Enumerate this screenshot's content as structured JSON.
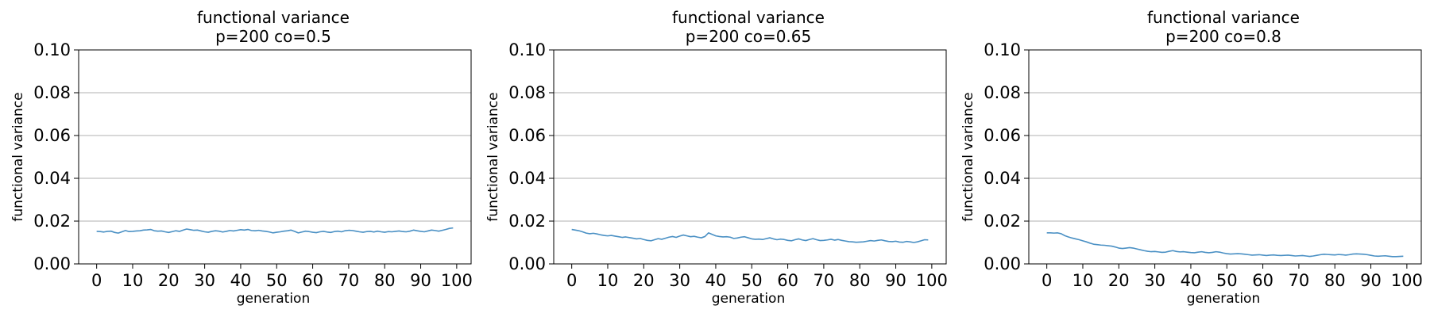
{
  "colors": {
    "line": "#4a90c4",
    "grid": "#b0b0b0",
    "axes": "#000000"
  },
  "chart_data": [
    {
      "type": "line",
      "title": "functional variance",
      "subtitle": "p=200 co=0.5",
      "xlabel": "generation",
      "ylabel": "functional variance",
      "xlim": [
        -5,
        104
      ],
      "ylim": [
        0.0,
        0.1
      ],
      "xticks": [
        "0",
        "10",
        "20",
        "30",
        "40",
        "50",
        "60",
        "70",
        "80",
        "90",
        "100"
      ],
      "yticks": [
        "0.00",
        "0.02",
        "0.04",
        "0.06",
        "0.08",
        "0.10"
      ],
      "grid": "y",
      "series": [
        {
          "values": [
            0.0152,
            0.0151,
            0.0149,
            0.0152,
            0.0153,
            0.0147,
            0.0144,
            0.015,
            0.0156,
            0.0151,
            0.0152,
            0.0154,
            0.0155,
            0.0158,
            0.0159,
            0.0161,
            0.0155,
            0.0153,
            0.0154,
            0.015,
            0.0147,
            0.0151,
            0.0155,
            0.0152,
            0.0158,
            0.0163,
            0.016,
            0.0157,
            0.0158,
            0.0154,
            0.015,
            0.0148,
            0.0152,
            0.0155,
            0.0153,
            0.0149,
            0.0152,
            0.0156,
            0.0154,
            0.0157,
            0.016,
            0.0158,
            0.0161,
            0.0156,
            0.0155,
            0.0157,
            0.0154,
            0.0152,
            0.0149,
            0.0145,
            0.0148,
            0.015,
            0.0153,
            0.0155,
            0.0158,
            0.0152,
            0.0145,
            0.0149,
            0.0153,
            0.0151,
            0.0148,
            0.0146,
            0.015,
            0.0152,
            0.0149,
            0.0147,
            0.0151,
            0.0153,
            0.015,
            0.0155,
            0.0157,
            0.0156,
            0.0153,
            0.015,
            0.0148,
            0.0151,
            0.0152,
            0.0149,
            0.0153,
            0.015,
            0.0148,
            0.0151,
            0.015,
            0.0152,
            0.0154,
            0.0151,
            0.015,
            0.0153,
            0.0158,
            0.0155,
            0.0152,
            0.015,
            0.0154,
            0.0158,
            0.0156,
            0.0153,
            0.0157,
            0.0161,
            0.0166,
            0.0168
          ]
        }
      ]
    },
    {
      "type": "line",
      "title": "functional variance",
      "subtitle": "p=200 co=0.65",
      "xlabel": "generation",
      "ylabel": "functional variance",
      "xlim": [
        -5,
        104
      ],
      "ylim": [
        0.0,
        0.1
      ],
      "xticks": [
        "0",
        "10",
        "20",
        "30",
        "40",
        "50",
        "60",
        "70",
        "80",
        "90",
        "100"
      ],
      "yticks": [
        "0.00",
        "0.02",
        "0.04",
        "0.06",
        "0.08",
        "0.10"
      ],
      "grid": "y",
      "series": [
        {
          "values": [
            0.0161,
            0.0158,
            0.0155,
            0.015,
            0.0144,
            0.0141,
            0.0143,
            0.014,
            0.0136,
            0.0133,
            0.0131,
            0.0133,
            0.013,
            0.0127,
            0.0124,
            0.0126,
            0.0123,
            0.012,
            0.0117,
            0.0119,
            0.0114,
            0.011,
            0.0108,
            0.0113,
            0.0118,
            0.0115,
            0.012,
            0.0125,
            0.0128,
            0.0124,
            0.013,
            0.0135,
            0.0131,
            0.0127,
            0.0129,
            0.0125,
            0.0122,
            0.0128,
            0.0145,
            0.0138,
            0.0131,
            0.0128,
            0.0126,
            0.0127,
            0.0125,
            0.0119,
            0.0121,
            0.0125,
            0.0127,
            0.0122,
            0.0117,
            0.0115,
            0.0116,
            0.0114,
            0.0118,
            0.0122,
            0.0117,
            0.0113,
            0.0116,
            0.0114,
            0.011,
            0.0108,
            0.0113,
            0.0117,
            0.0112,
            0.0109,
            0.0114,
            0.0118,
            0.0113,
            0.0109,
            0.011,
            0.0112,
            0.0115,
            0.0111,
            0.0114,
            0.011,
            0.0107,
            0.0104,
            0.0103,
            0.0101,
            0.0102,
            0.0103,
            0.0106,
            0.0109,
            0.0107,
            0.011,
            0.0112,
            0.0108,
            0.0105,
            0.0104,
            0.0106,
            0.0102,
            0.0101,
            0.0105,
            0.0103,
            0.01,
            0.0103,
            0.0108,
            0.0113,
            0.0112
          ]
        }
      ]
    },
    {
      "type": "line",
      "title": "functional variance",
      "subtitle": "p=200 co=0.8",
      "xlabel": "generation",
      "ylabel": "functional variance",
      "xlim": [
        -5,
        104
      ],
      "ylim": [
        0.0,
        0.1
      ],
      "xticks": [
        "0",
        "10",
        "20",
        "30",
        "40",
        "50",
        "60",
        "70",
        "80",
        "90",
        "100"
      ],
      "yticks": [
        "0.00",
        "0.02",
        "0.04",
        "0.06",
        "0.08",
        "0.10"
      ],
      "grid": "y",
      "series": [
        {
          "values": [
            0.0145,
            0.0145,
            0.0144,
            0.0145,
            0.0141,
            0.0132,
            0.0126,
            0.0121,
            0.0117,
            0.0113,
            0.0108,
            0.0103,
            0.0097,
            0.0092,
            0.009,
            0.0088,
            0.0087,
            0.0085,
            0.0083,
            0.0079,
            0.0074,
            0.0072,
            0.0074,
            0.0076,
            0.0074,
            0.007,
            0.0066,
            0.0062,
            0.0059,
            0.0057,
            0.0058,
            0.0056,
            0.0054,
            0.0055,
            0.0059,
            0.0062,
            0.0058,
            0.0056,
            0.0057,
            0.0055,
            0.0053,
            0.0052,
            0.0055,
            0.0057,
            0.0054,
            0.0052,
            0.0054,
            0.0057,
            0.0055,
            0.0051,
            0.0048,
            0.0046,
            0.0047,
            0.0048,
            0.0047,
            0.0045,
            0.0043,
            0.0041,
            0.0042,
            0.0043,
            0.0041,
            0.0039,
            0.0041,
            0.0042,
            0.004,
            0.0039,
            0.004,
            0.0041,
            0.0039,
            0.0037,
            0.0038,
            0.0039,
            0.0037,
            0.0035,
            0.0037,
            0.004,
            0.0043,
            0.0045,
            0.0044,
            0.0043,
            0.0042,
            0.0044,
            0.0043,
            0.0041,
            0.0043,
            0.0046,
            0.0047,
            0.0046,
            0.0045,
            0.0043,
            0.004,
            0.0037,
            0.0036,
            0.0037,
            0.0038,
            0.0036,
            0.0034,
            0.0034,
            0.0035,
            0.0036
          ]
        }
      ]
    }
  ]
}
